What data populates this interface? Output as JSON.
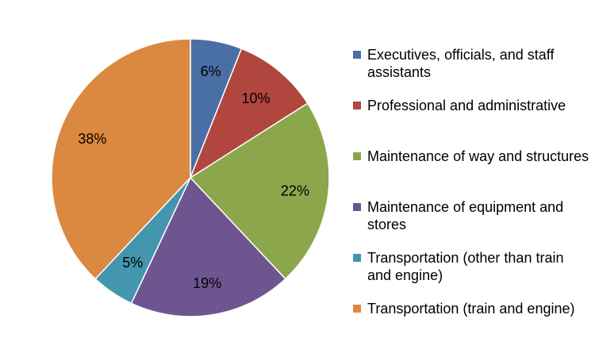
{
  "chart_data": {
    "type": "pie",
    "slices": [
      {
        "label": "Executives, officials, and staff assistants",
        "value": 6,
        "value_label": "6%",
        "color": "#4A6FA5"
      },
      {
        "label": "Professional and administrative",
        "value": 10,
        "value_label": "10%",
        "color": "#B0463E"
      },
      {
        "label": "Maintenance of way and structures",
        "value": 22,
        "value_label": "22%",
        "color": "#8BA64B"
      },
      {
        "label": "Maintenance of equipment and stores",
        "value": 19,
        "value_label": "19%",
        "color": "#6F5590"
      },
      {
        "label": "Transportation (other than train and engine)",
        "value": 5,
        "value_label": "5%",
        "color": "#4396AE"
      },
      {
        "label": "Transportation (train and engine)",
        "value": 38,
        "value_label": "38%",
        "color": "#DB8840"
      }
    ],
    "start_angle": "12 o'clock",
    "direction": "clockwise",
    "legend_position": "right"
  }
}
